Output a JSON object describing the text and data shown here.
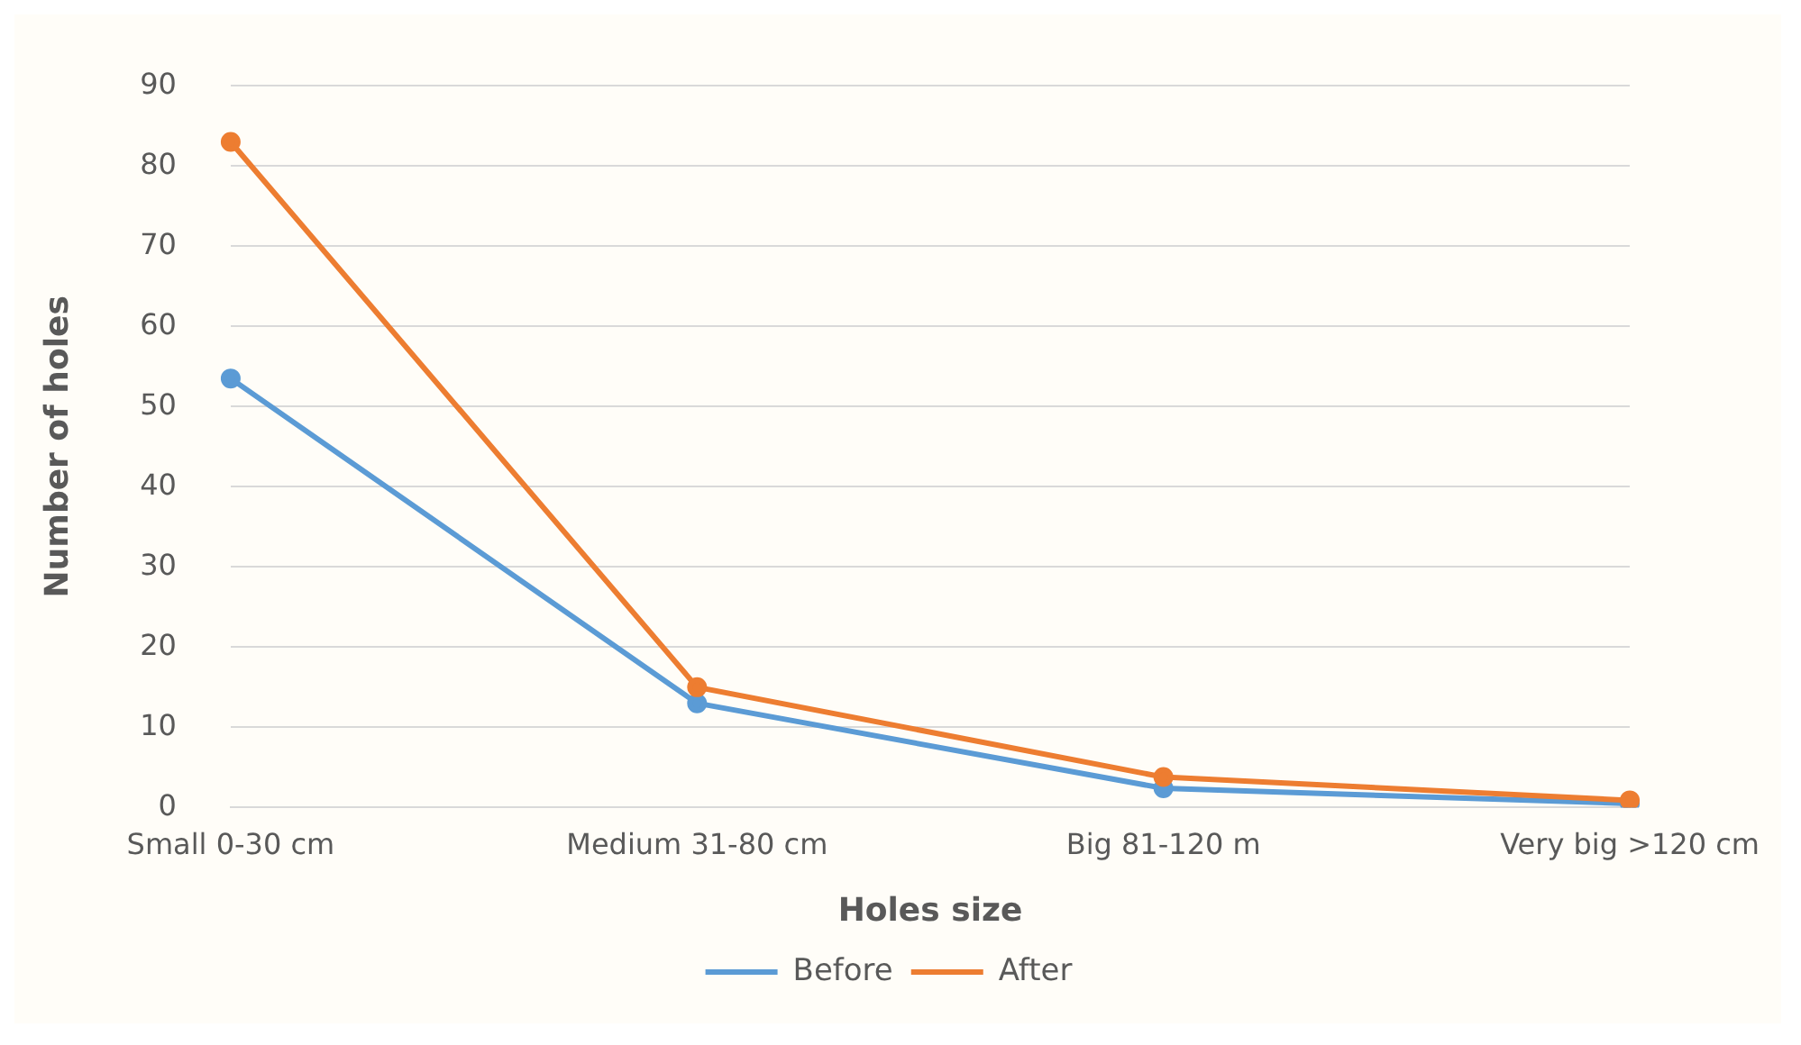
{
  "chart_data": {
    "type": "line",
    "xlabel": "Holes size",
    "ylabel": "Number of holes",
    "categories": [
      "Small 0-30 cm",
      "Medium 31-80 cm",
      "Big 81-120 m",
      "Very big >120 cm"
    ],
    "series": [
      {
        "name": "Before",
        "color": "#5b9bd5",
        "values": [
          53.5,
          13,
          2.4,
          0.5
        ]
      },
      {
        "name": "After",
        "color": "#ed7d31",
        "values": [
          83,
          15,
          3.8,
          0.9
        ]
      }
    ],
    "ylim": [
      0,
      90
    ],
    "yticks": [
      0,
      10,
      20,
      30,
      40,
      50,
      60,
      70,
      80,
      90
    ],
    "grid": "y",
    "legend": "bottom",
    "marker": "circle",
    "line_style": "solid"
  }
}
